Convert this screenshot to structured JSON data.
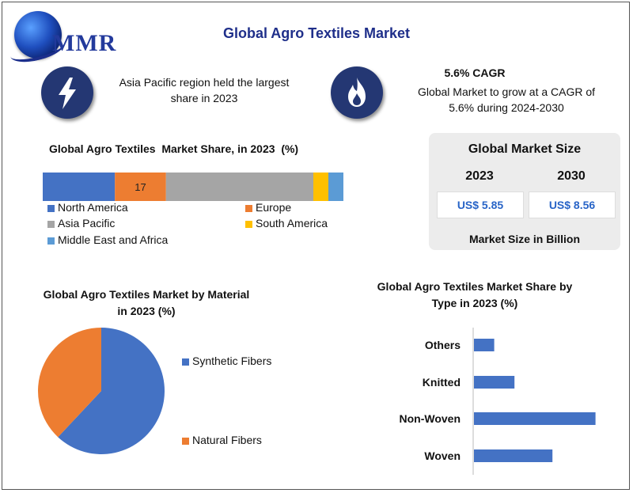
{
  "brand": {
    "logo_text": "MMR"
  },
  "title": "Global Agro Textiles Market",
  "highlights": [
    {
      "icon": "lightning-icon",
      "text": "Asia Pacific region held the largest share in 2023"
    },
    {
      "icon": "flame-icon",
      "heading": "5.6% CAGR",
      "text": "Global Market to grow at a CAGR of 5.6% during 2024-2030"
    }
  ],
  "market_size": {
    "heading": "Global Market Size",
    "years": [
      "2023",
      "2030"
    ],
    "values": [
      "US$ 5.85",
      "US$ 8.56"
    ],
    "footer": "Market Size in Billion"
  },
  "colors": {
    "north_america": "#4472c4",
    "europe": "#ed7d31",
    "asia_pacific": "#a5a5a5",
    "south_america": "#ffc000",
    "mea": "#5b9bd5",
    "bar": "#4472c4",
    "icon_bg": "#243773"
  },
  "chart_data": [
    {
      "type": "bar",
      "orientation": "horizontal-stacked",
      "title": "Global Agro Textiles  Market Share, in 2023  (%)",
      "series": [
        {
          "name": "North America",
          "value": 24
        },
        {
          "name": "Europe",
          "value": 17
        },
        {
          "name": "Asia Pacific",
          "value": 49
        },
        {
          "name": "South America",
          "value": 5
        },
        {
          "name": "Middle East and Africa",
          "value": 5
        }
      ],
      "data_labels": [
        "",
        "17",
        "",
        "",
        ""
      ],
      "legend": [
        "North America",
        "Europe",
        "Asia Pacific",
        "South America",
        "Middle East and Africa"
      ]
    },
    {
      "type": "pie",
      "title": "Global Agro Textiles  Market by Material in 2023  (%)",
      "slices": [
        {
          "name": "Synthetic Fibers",
          "value": 62
        },
        {
          "name": "Natural Fibers",
          "value": 38
        }
      ]
    },
    {
      "type": "bar",
      "orientation": "horizontal",
      "title": "Global Agro Textiles  Market Share by Type in 2023  (%)",
      "categories": [
        "Others",
        "Knitted",
        "Non-Woven",
        "Woven"
      ],
      "values": [
        8,
        16,
        48,
        31
      ],
      "xlim": [
        0,
        50
      ]
    }
  ]
}
